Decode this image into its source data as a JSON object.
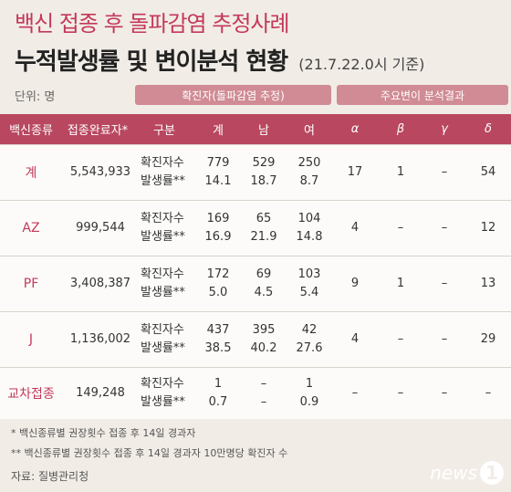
{
  "header": {
    "title_line1": "백신 접종 후 돌파감염 추정사례",
    "title_line2": "누적발생률 및 변이분석 현황",
    "date_note": "(21.7.22.0시 기준)",
    "unit": "단위: 명"
  },
  "bands": {
    "confirmed": "확진자(돌파감염 추정)",
    "variants": "주요변이 분석결과"
  },
  "columns": [
    "백신종류",
    "접종완료자*",
    "구분",
    "계",
    "남",
    "여",
    "α",
    "β",
    "γ",
    "δ"
  ],
  "rows": [
    {
      "kind": "계",
      "completed": "5,543,933",
      "label1": "확진자수",
      "label2": "발생률**",
      "total1": "779",
      "total2": "14.1",
      "male1": "529",
      "male2": "18.7",
      "female1": "250",
      "female2": "8.7",
      "alpha": "17",
      "beta": "1",
      "gamma": "–",
      "delta": "54"
    },
    {
      "kind": "AZ",
      "completed": "999,544",
      "label1": "확진자수",
      "label2": "발생률**",
      "total1": "169",
      "total2": "16.9",
      "male1": "65",
      "male2": "21.9",
      "female1": "104",
      "female2": "14.8",
      "alpha": "4",
      "beta": "–",
      "gamma": "–",
      "delta": "12"
    },
    {
      "kind": "PF",
      "completed": "3,408,387",
      "label1": "확진자수",
      "label2": "발생률**",
      "total1": "172",
      "total2": "5.0",
      "male1": "69",
      "male2": "4.5",
      "female1": "103",
      "female2": "5.4",
      "alpha": "9",
      "beta": "1",
      "gamma": "–",
      "delta": "13"
    },
    {
      "kind": "J",
      "completed": "1,136,002",
      "label1": "확진자수",
      "label2": "발생률**",
      "total1": "437",
      "total2": "38.5",
      "male1": "395",
      "male2": "40.2",
      "female1": "42",
      "female2": "27.6",
      "alpha": "4",
      "beta": "–",
      "gamma": "–",
      "delta": "29"
    },
    {
      "kind": "교차접종",
      "completed": "149,248",
      "label1": "확진자수",
      "label2": "발생률**",
      "total1": "1",
      "total2": "0.7",
      "male1": "–",
      "male2": "–",
      "female1": "1",
      "female2": "0.9",
      "alpha": "–",
      "beta": "–",
      "gamma": "–",
      "delta": "–"
    }
  ],
  "footnotes": {
    "note1": "* 백신종류별 권장횟수 접종 후 14일 경과자",
    "note2": "** 백신종류별 권장횟수 접종 후 14일 경과자 10만명당 확진자 수",
    "source": "자료: 질병관리청"
  },
  "logo": {
    "text": "news",
    "mark": "1"
  }
}
